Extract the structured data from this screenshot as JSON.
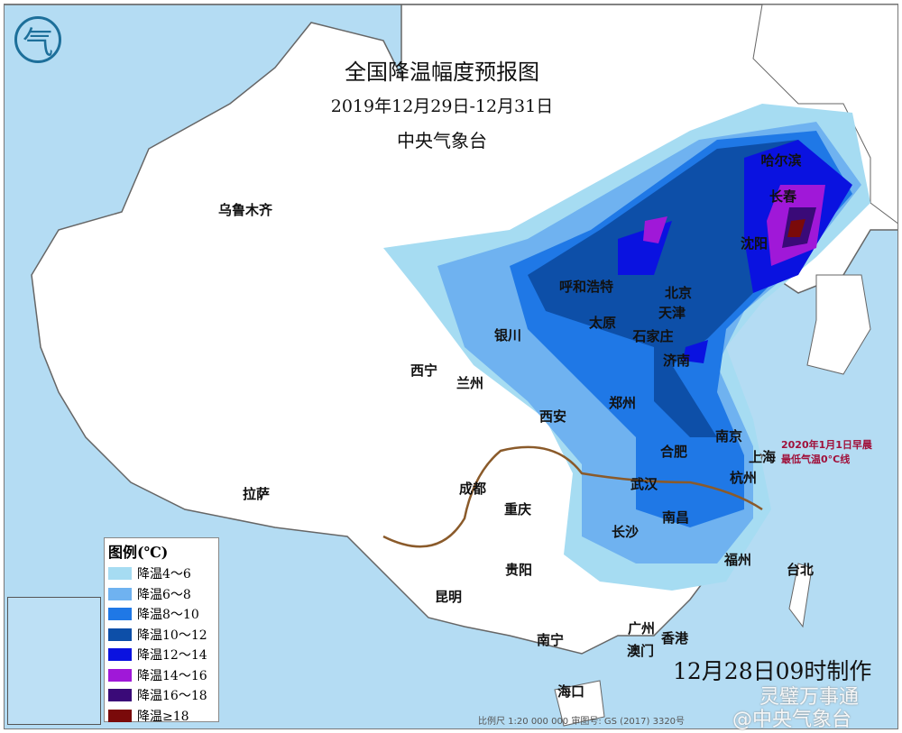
{
  "title": "全国降温幅度预报图",
  "date_range": "2019年12月29日-12月31日",
  "issuer": "中央气象台",
  "legend": {
    "title": "图例(℃)",
    "items": [
      {
        "label": "降温4～6",
        "color": "#a6dcf2"
      },
      {
        "label": "降温6～8",
        "color": "#6fb2f0"
      },
      {
        "label": "降温8～10",
        "color": "#1f78e6"
      },
      {
        "label": "降温10～12",
        "color": "#0d4fa8"
      },
      {
        "label": "降温12～14",
        "color": "#0a12e0"
      },
      {
        "label": "降温14～16",
        "color": "#a018d8"
      },
      {
        "label": "降温16～18",
        "color": "#3a0a78"
      },
      {
        "label": "降温≥18",
        "color": "#7a0a0a"
      }
    ]
  },
  "cities": [
    "乌鲁木齐",
    "哈尔滨",
    "长春",
    "沈阳",
    "呼和浩特",
    "北京",
    "天津",
    "太原",
    "石家庄",
    "银川",
    "济南",
    "西宁",
    "兰州",
    "郑州",
    "西安",
    "南京",
    "上海",
    "合肥",
    "武汉",
    "杭州",
    "拉萨",
    "成都",
    "重庆",
    "长沙",
    "南昌",
    "福州",
    "贵阳",
    "台北",
    "昆明",
    "广州",
    "南宁",
    "澳门",
    "香港",
    "海口"
  ],
  "zero_line_note": [
    "2020年1月1日早晨",
    "最低气温0°C线"
  ],
  "made_time": "12月28日09时制作",
  "scale_text": "比例尺 1:20 000 000    审图号: GS (2017) 3320号",
  "watermark": [
    "灵璧万事通",
    "@中央气象台"
  ],
  "colors": {
    "sea": "#b4dcf3",
    "land": "#ffffff",
    "zero_line": "#8a5a2a"
  }
}
